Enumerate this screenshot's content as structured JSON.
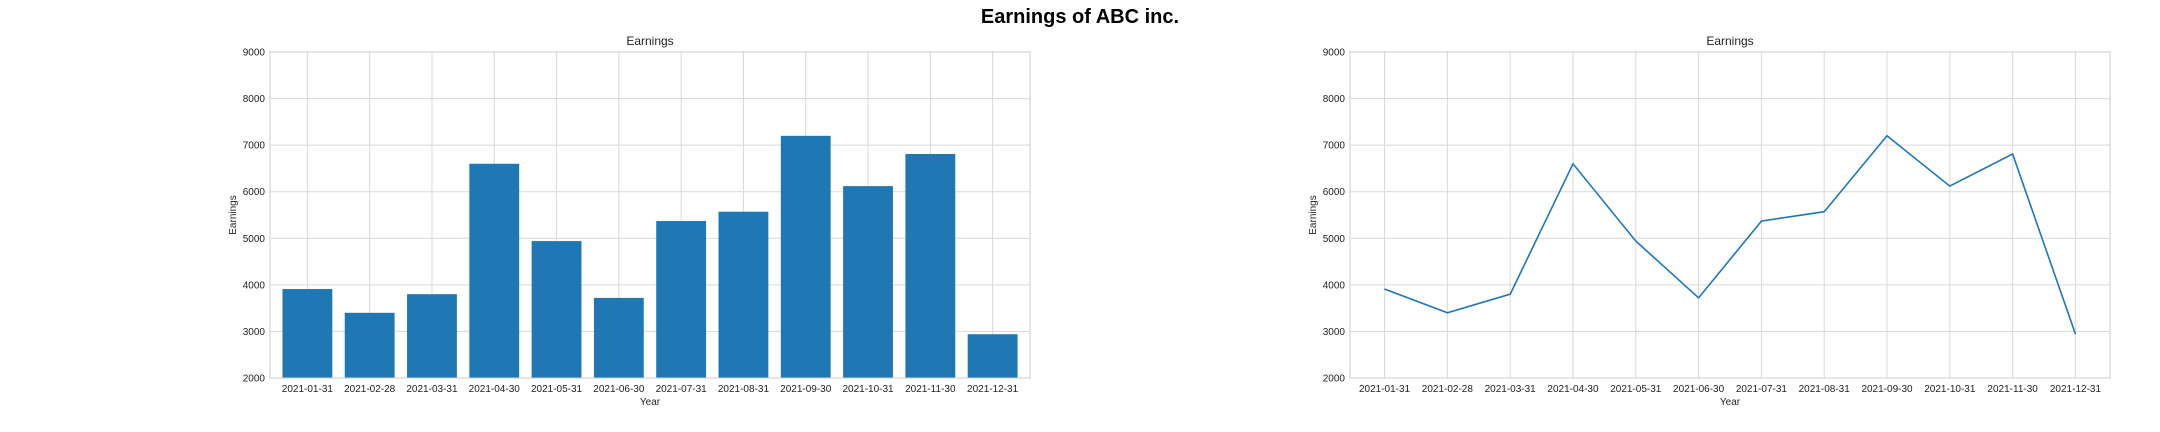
{
  "figure": {
    "suptitle": "Earnings of ABC inc."
  },
  "chart_data": [
    {
      "type": "bar",
      "title": "Earnings",
      "xlabel": "Year",
      "ylabel": "Earnings",
      "categories": [
        "2021-01-31",
        "2021-02-28",
        "2021-03-31",
        "2021-04-30",
        "2021-05-31",
        "2021-06-30",
        "2021-07-31",
        "2021-08-31",
        "2021-09-30",
        "2021-10-31",
        "2021-11-30",
        "2021-12-31"
      ],
      "values": [
        3910,
        3400,
        3800,
        6600,
        4940,
        3720,
        5370,
        5570,
        7200,
        6120,
        6810,
        2940
      ],
      "ylim": [
        2000,
        9000
      ],
      "yticks": [
        2000,
        3000,
        4000,
        5000,
        6000,
        7000,
        8000,
        9000
      ],
      "grid": true,
      "color": "#1f77b4"
    },
    {
      "type": "line",
      "title": "Earnings",
      "xlabel": "Year",
      "ylabel": "Earnings",
      "categories": [
        "2021-01-31",
        "2021-02-28",
        "2021-03-31",
        "2021-04-30",
        "2021-05-31",
        "2021-06-30",
        "2021-07-31",
        "2021-08-31",
        "2021-09-30",
        "2021-10-31",
        "2021-11-30",
        "2021-12-31"
      ],
      "values": [
        3910,
        3400,
        3800,
        6600,
        4940,
        3720,
        5370,
        5570,
        7200,
        6120,
        6810,
        2940
      ],
      "ylim": [
        2000,
        9000
      ],
      "yticks": [
        2000,
        3000,
        4000,
        5000,
        6000,
        7000,
        8000,
        9000
      ],
      "grid": true,
      "color": "#1f77b4"
    }
  ]
}
